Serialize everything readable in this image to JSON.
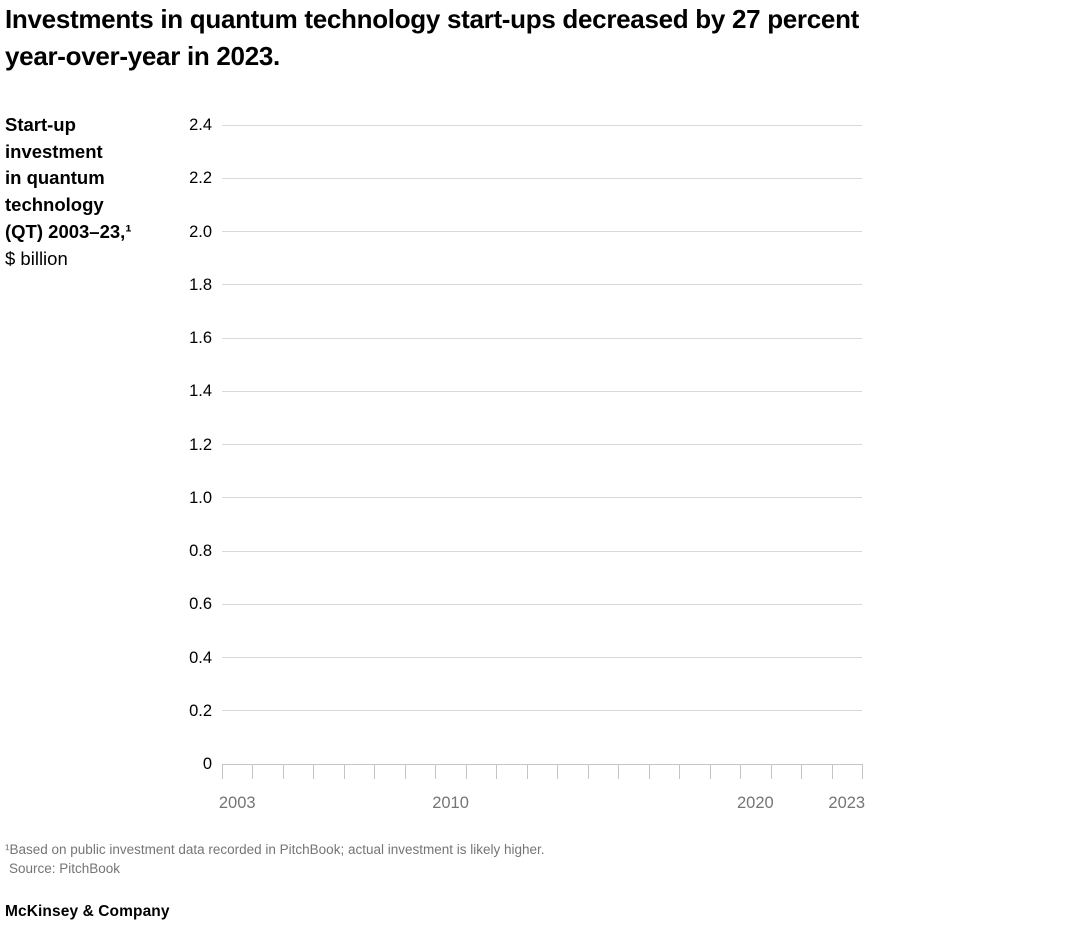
{
  "header": {
    "title_lines": [
      "Investments in quantum technology start-ups decreased by 27 percent",
      "year-over-year in 2023."
    ]
  },
  "axis_title": {
    "lines": [
      "Start-up",
      "investment",
      "in quantum",
      "technology",
      "(QT) 2003–23,¹",
      "$ billion"
    ]
  },
  "chart_data": {
    "type": "bar",
    "title": "Start-up investment in quantum technology (QT) 2003–23, $ billion",
    "categories": [
      2003,
      2004,
      2005,
      2006,
      2007,
      2008,
      2009,
      2010,
      2011,
      2012,
      2013,
      2014,
      2015,
      2016,
      2017,
      2018,
      2019,
      2020,
      2021,
      2022,
      2023
    ],
    "values": [],
    "bars_rendered": false,
    "ylim": [
      0,
      2.4
    ],
    "y_ticks": [
      0,
      0.2,
      0.4,
      0.6,
      0.8,
      1,
      1.2,
      1.4,
      1.6,
      1.8,
      2,
      2.2,
      2.4
    ],
    "y_tick_labels": [
      "0",
      "0.2",
      "0.4",
      "0.6",
      "0.8",
      "1.0",
      "1.2",
      "1.4",
      "1.6",
      "1.8",
      "2.0",
      "2.2",
      "2.4"
    ],
    "x_tick_labels_shown": [
      "2003",
      "2010",
      "2020",
      "2023"
    ],
    "grid": "horizontal",
    "legend": "none"
  },
  "footnote": {
    "note": "¹Based on public investment data recorded in PitchBook; actual investment is likely higher.",
    "source": "Source: PitchBook"
  },
  "footer": {
    "logo": "McKinsey & Company"
  },
  "colors": {
    "title_text": "#000000",
    "tick_label": "#757575",
    "gridline": "#d9d9d9",
    "axis_line": "#c4c4c4",
    "footnote_text": "#757575"
  }
}
